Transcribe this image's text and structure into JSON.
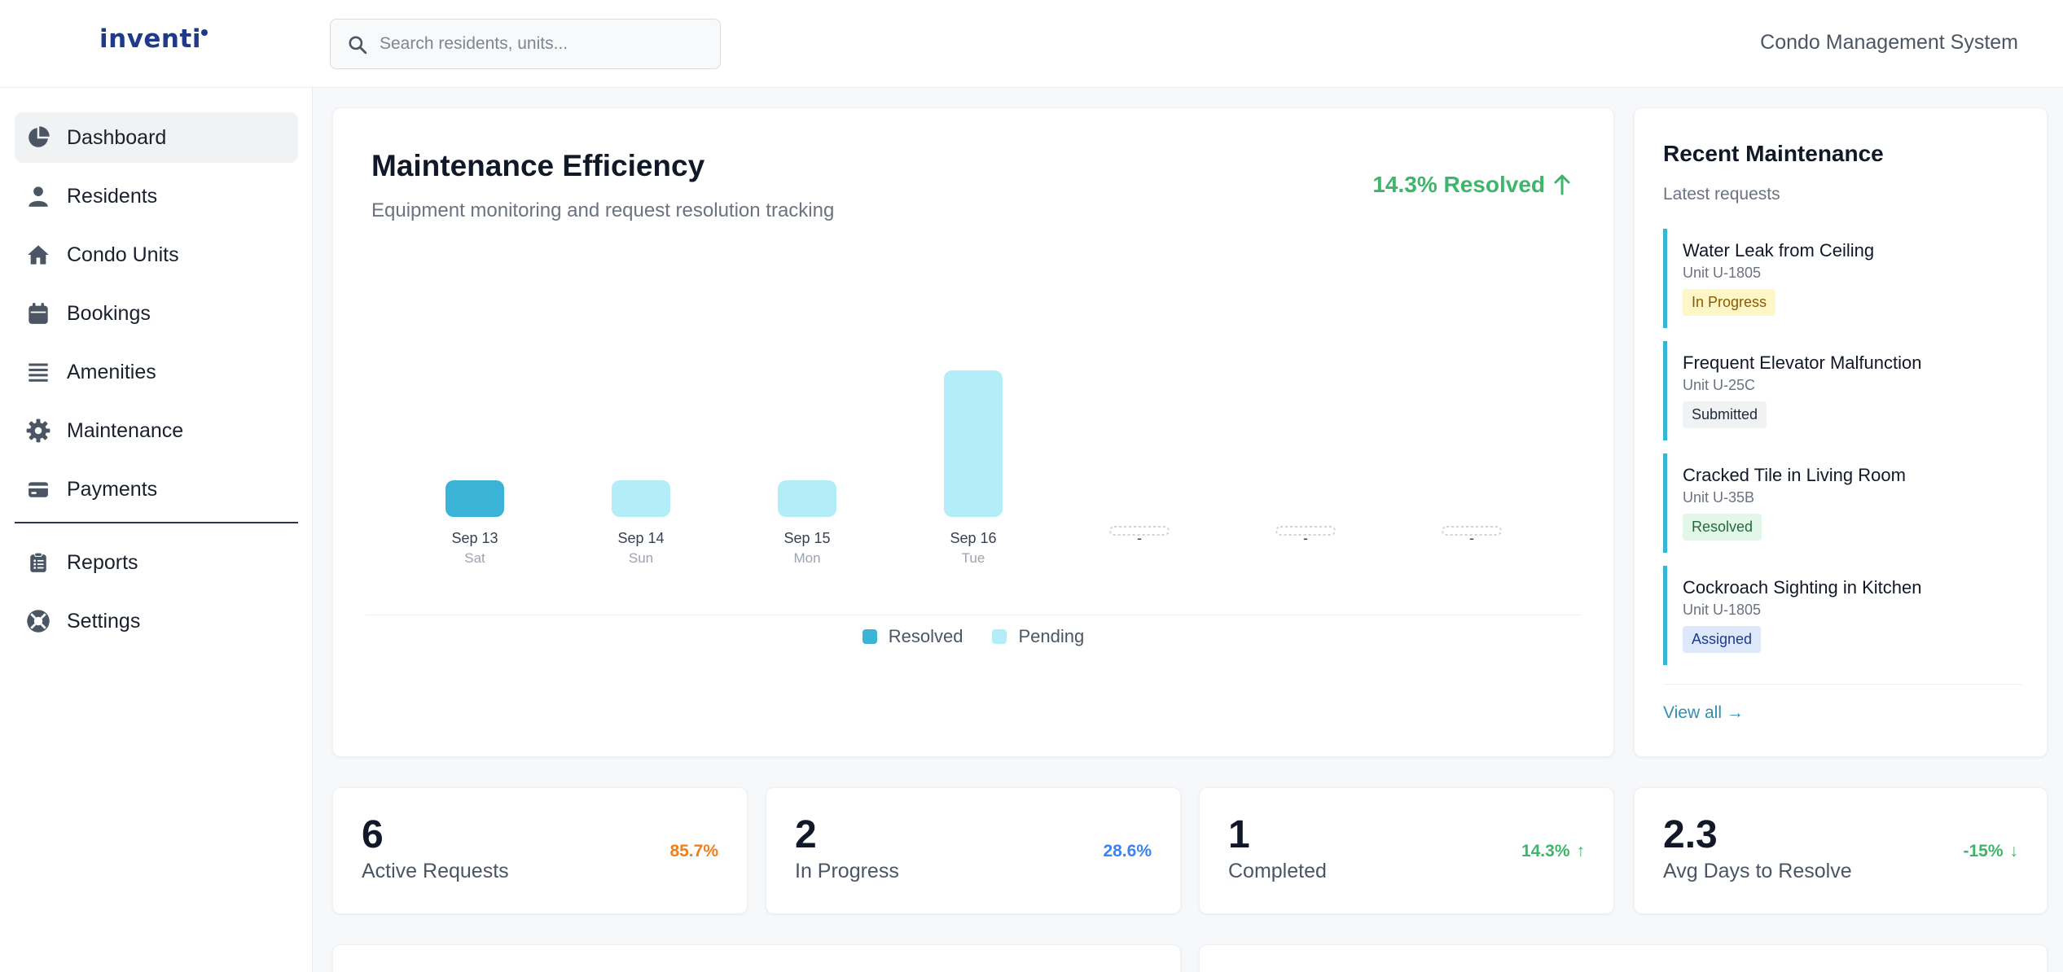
{
  "header": {
    "logo": "inventi",
    "search_placeholder": "Search residents, units...",
    "app_title": "Condo Management System"
  },
  "sidebar": {
    "items": [
      {
        "label": "Dashboard",
        "icon": "pie-chart-icon",
        "active": true
      },
      {
        "label": "Residents",
        "icon": "user-icon"
      },
      {
        "label": "Condo Units",
        "icon": "home-icon"
      },
      {
        "label": "Bookings",
        "icon": "calendar-icon"
      },
      {
        "label": "Amenities",
        "icon": "list-icon"
      },
      {
        "label": "Maintenance",
        "icon": "gear-icon"
      },
      {
        "label": "Payments",
        "icon": "credit-card-icon"
      }
    ],
    "secondary_items": [
      {
        "label": "Reports",
        "icon": "clipboard-icon"
      },
      {
        "label": "Settings",
        "icon": "life-ring-icon"
      }
    ]
  },
  "efficiency": {
    "title": "Maintenance Efficiency",
    "subtitle": "Equipment monitoring and request resolution tracking",
    "resolved_label": "14.3% Resolved",
    "trend": "up"
  },
  "chart_data": {
    "type": "bar",
    "stacked": true,
    "categories": [
      "Sep 13",
      "Sep 14",
      "Sep 15",
      "Sep 16",
      "-",
      "-",
      "-"
    ],
    "sublabels": [
      "Sat",
      "Sun",
      "Mon",
      "Tue",
      "",
      "",
      ""
    ],
    "series": [
      {
        "name": "Resolved",
        "color": "#3ab3d6",
        "values": [
          1,
          0,
          0,
          0,
          0,
          0,
          0
        ]
      },
      {
        "name": "Pending",
        "color": "#b3edf7",
        "values": [
          0,
          1,
          1,
          4,
          0,
          0,
          0
        ]
      }
    ],
    "empty_days": [
      4,
      5,
      6
    ],
    "ylim": [
      0,
      4
    ],
    "legend": [
      "Resolved",
      "Pending"
    ],
    "legend_position": "bottom"
  },
  "recent": {
    "title": "Recent Maintenance",
    "subtitle": "Latest requests",
    "items": [
      {
        "title": "Water Leak from Ceiling",
        "unit": "Unit U-1805",
        "status": "In Progress",
        "badge_bg": "#fef6c7",
        "badge_fg": "#8a5a00"
      },
      {
        "title": "Frequent Elevator Malfunction",
        "unit": "Unit U-25C",
        "status": "Submitted",
        "badge_bg": "#f1f2f4",
        "badge_fg": "#1f2937"
      },
      {
        "title": "Cracked Tile in Living Room",
        "unit": "Unit U-35B",
        "status": "Resolved",
        "badge_bg": "#e3f7e8",
        "badge_fg": "#1f6b3a"
      },
      {
        "title": "Cockroach Sighting in Kitchen",
        "unit": "Unit U-1805",
        "status": "Assigned",
        "badge_bg": "#dde9fb",
        "badge_fg": "#1e3a8a"
      }
    ],
    "view_all": "View all →"
  },
  "stats": [
    {
      "value": "6",
      "label": "Active Requests",
      "change": "85.7%",
      "color": "#f07e1a",
      "arrow": ""
    },
    {
      "value": "2",
      "label": "In Progress",
      "change": "28.6%",
      "color": "#3b82f6",
      "arrow": ""
    },
    {
      "value": "1",
      "label": "Completed",
      "change": "14.3%",
      "color": "#3fb56b",
      "arrow": "↑"
    },
    {
      "value": "2.3",
      "label": "Avg Days to Resolve",
      "change": "-15%",
      "color": "#3fb56b",
      "arrow": "↓"
    }
  ]
}
